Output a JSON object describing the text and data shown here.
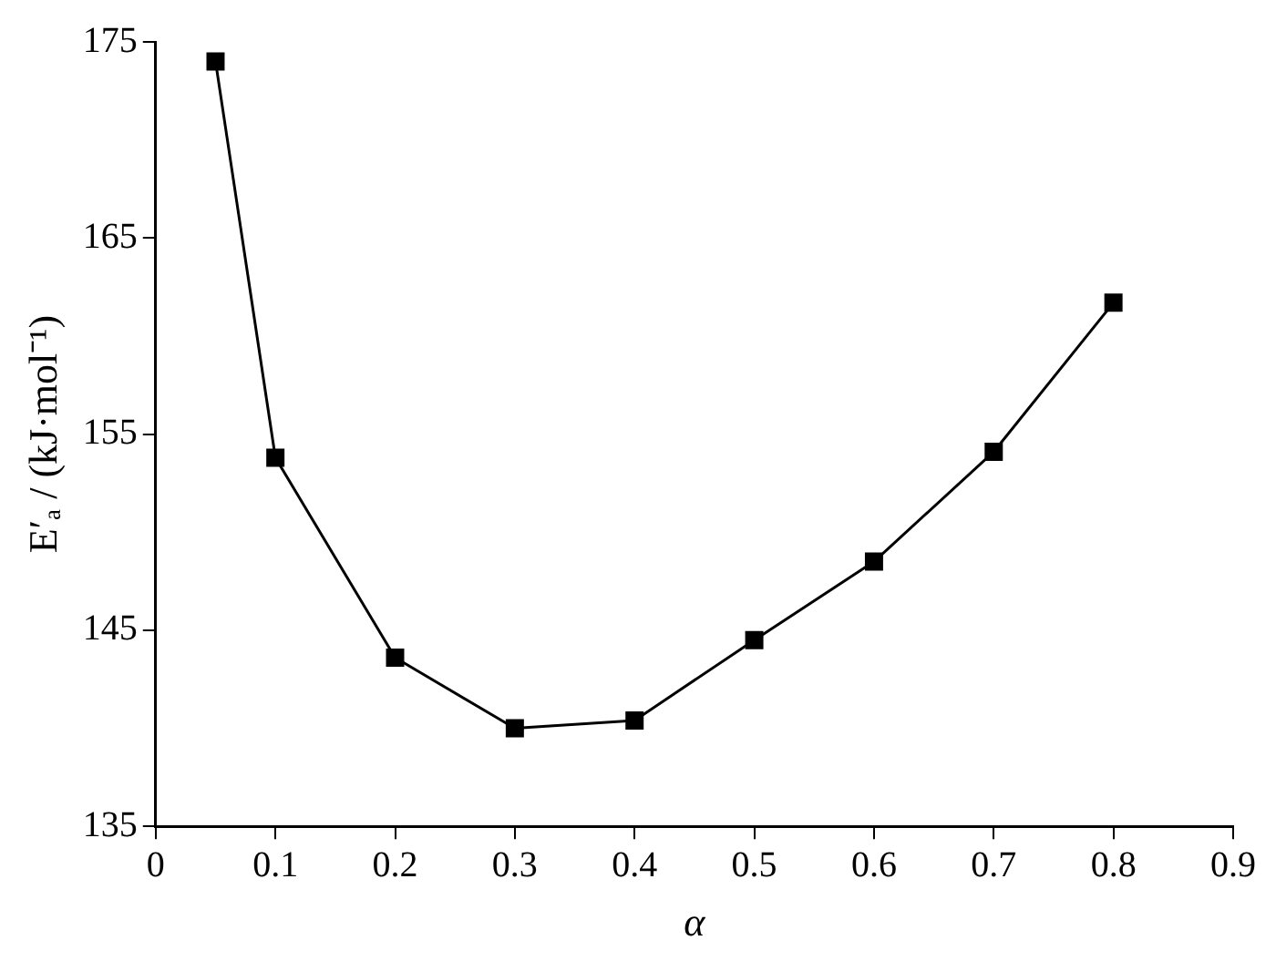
{
  "chart_data": {
    "type": "line",
    "xlabel": "α",
    "ylabel": "E′ₐ / (kJ·mol⁻¹)",
    "x": [
      0.05,
      0.1,
      0.2,
      0.3,
      0.4,
      0.5,
      0.6,
      0.7,
      0.8
    ],
    "series": [
      {
        "color": "#000000",
        "values": [
          174.0,
          153.8,
          143.6,
          140.0,
          140.4,
          144.5,
          148.5,
          154.1,
          161.7
        ]
      }
    ],
    "xlim": [
      0,
      0.9
    ],
    "xticks": [
      0,
      0.1,
      0.2,
      0.3,
      0.4,
      0.5,
      0.6,
      0.7,
      0.8,
      0.9
    ],
    "ylim": [
      135,
      175
    ],
    "yticks": [
      135,
      145,
      155,
      165,
      175
    ],
    "marker": "square",
    "line_style": "solid",
    "grid": false,
    "legend": false
  }
}
